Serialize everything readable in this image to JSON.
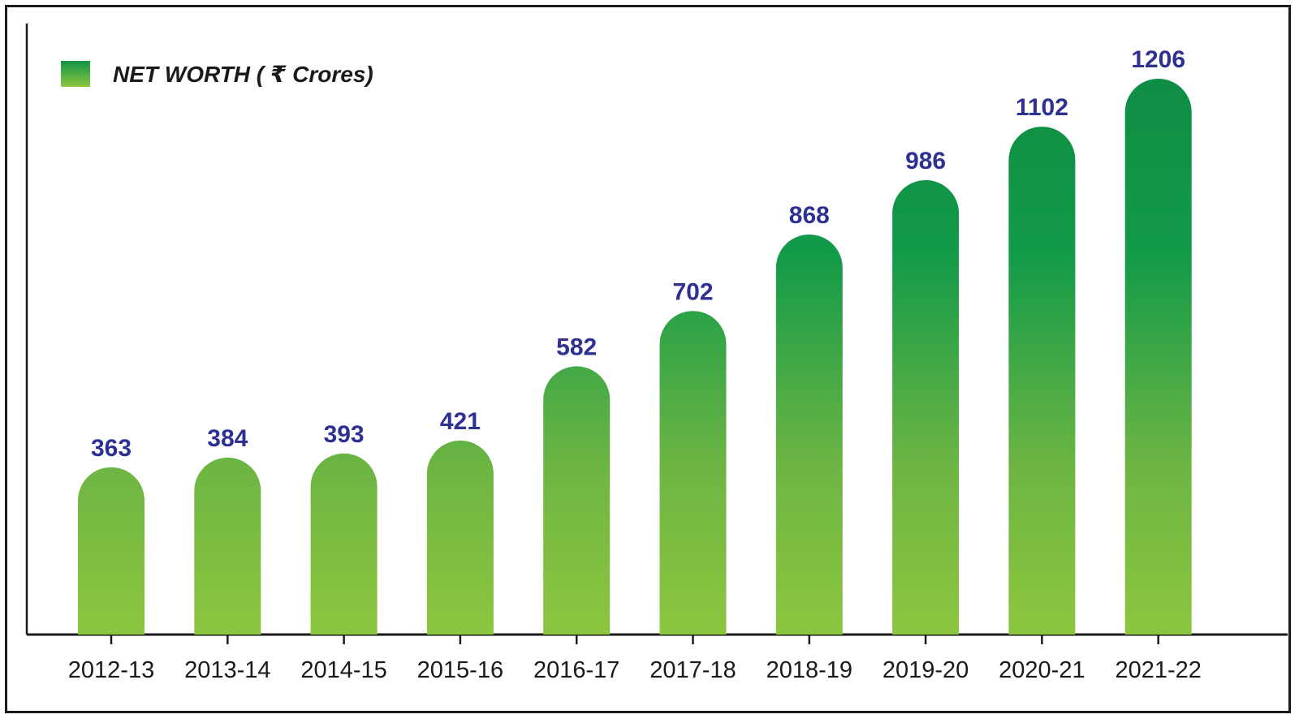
{
  "chart_data": {
    "type": "bar",
    "categories": [
      "2012-13",
      "2013-14",
      "2014-15",
      "2015-16",
      "2016-17",
      "2017-18",
      "2018-19",
      "2019-20",
      "2020-21",
      "2021-22"
    ],
    "series": [
      {
        "name": "NET WORTH ( ₹ Crores)",
        "values": [
          363,
          384,
          393,
          421,
          582,
          702,
          868,
          986,
          1102,
          1206
        ]
      }
    ],
    "ylim": [
      0,
      1300
    ],
    "grid": false,
    "legend_position": "top-left",
    "data_labels": true,
    "colors": {
      "bar_top": "#0f8c45",
      "bar_mid": "#129a49",
      "bar_bottom": "#8dc63f",
      "value_label": "#2e3192",
      "axis": "#1a1a1a"
    }
  }
}
